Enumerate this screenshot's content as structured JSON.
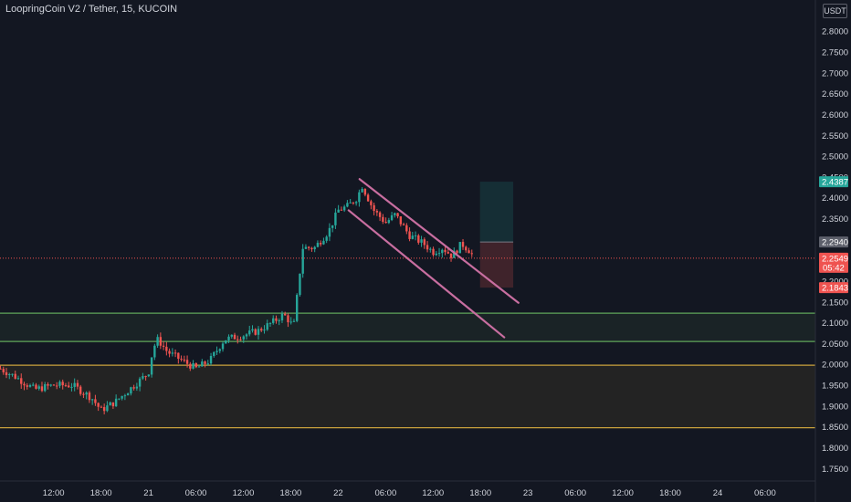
{
  "header": {
    "title": "LoopringCoin V2 / Tether, 15, KUCOIN",
    "currency_button": "USDT"
  },
  "colors": {
    "background": "#131722",
    "up": "#26a69a",
    "down": "#ef5350",
    "channel": "#c86ea0",
    "support_zone": "#5fa55a",
    "demand_zone": "#c9a23c",
    "price_line": "#ef5350"
  },
  "chart_data": {
    "type": "candlestick",
    "ylim": [
      1.72,
      2.875
    ],
    "xlim": [
      -1.13,
      16.06
    ],
    "y_ticks": [
      "2.8000",
      "2.7500",
      "2.7000",
      "2.6500",
      "2.6000",
      "2.5500",
      "2.5000",
      "2.4500",
      "2.4000",
      "2.3500",
      "2.3000",
      "2.2500",
      "2.2000",
      "2.1500",
      "2.1000",
      "2.0500",
      "2.0000",
      "1.9500",
      "1.9000",
      "1.8500",
      "1.8000",
      "1.7500"
    ],
    "y_tick_values": [
      2.8,
      2.75,
      2.7,
      2.65,
      2.6,
      2.55,
      2.5,
      2.45,
      2.4,
      2.35,
      2.3,
      2.25,
      2.2,
      2.15,
      2.1,
      2.05,
      2.0,
      1.95,
      1.9,
      1.85,
      1.8,
      1.75
    ],
    "x_ticks": [
      {
        "label": "12:00",
        "t": 0
      },
      {
        "label": "18:00",
        "t": 1
      },
      {
        "label": "21",
        "t": 2
      },
      {
        "label": "06:00",
        "t": 3
      },
      {
        "label": "12:00",
        "t": 4
      },
      {
        "label": "18:00",
        "t": 5
      },
      {
        "label": "22",
        "t": 6
      },
      {
        "label": "06:00",
        "t": 7
      },
      {
        "label": "12:00",
        "t": 8
      },
      {
        "label": "18:00",
        "t": 9
      },
      {
        "label": "23",
        "t": 10
      },
      {
        "label": "06:00",
        "t": 11
      },
      {
        "label": "12:00",
        "t": 12
      },
      {
        "label": "18:00",
        "t": 13
      },
      {
        "label": "24",
        "t": 14
      },
      {
        "label": "06:00",
        "t": 15
      }
    ],
    "price_path": [
      [
        -1.13,
        1.99
      ],
      [
        -0.8,
        1.97
      ],
      [
        -0.4,
        1.94
      ],
      [
        0.0,
        1.95
      ],
      [
        0.4,
        1.95
      ],
      [
        0.8,
        1.92
      ],
      [
        1.0,
        1.89
      ],
      [
        1.3,
        1.91
      ],
      [
        1.6,
        1.94
      ],
      [
        2.0,
        1.98
      ],
      [
        2.1,
        2.04
      ],
      [
        2.2,
        2.06
      ],
      [
        2.4,
        2.03
      ],
      [
        2.7,
        2.01
      ],
      [
        3.0,
        1.99
      ],
      [
        3.3,
        2.01
      ],
      [
        3.6,
        2.06
      ],
      [
        4.0,
        2.07
      ],
      [
        4.3,
        2.08
      ],
      [
        4.6,
        2.1
      ],
      [
        4.85,
        2.12
      ],
      [
        5.0,
        2.1
      ],
      [
        5.05,
        2.08
      ],
      [
        5.15,
        2.18
      ],
      [
        5.25,
        2.28
      ],
      [
        5.5,
        2.28
      ],
      [
        5.8,
        2.32
      ],
      [
        6.0,
        2.37
      ],
      [
        6.2,
        2.38
      ],
      [
        6.4,
        2.4
      ],
      [
        6.5,
        2.43
      ],
      [
        6.75,
        2.37
      ],
      [
        7.0,
        2.34
      ],
      [
        7.2,
        2.36
      ],
      [
        7.5,
        2.31
      ],
      [
        7.8,
        2.29
      ],
      [
        8.0,
        2.27
      ],
      [
        8.2,
        2.28
      ],
      [
        8.4,
        2.26
      ],
      [
        8.6,
        2.29
      ],
      [
        8.8,
        2.27
      ],
      [
        8.85,
        2.2549
      ]
    ],
    "channel_lines": [
      {
        "t1": 6.45,
        "p1": 2.445,
        "t2": 9.8,
        "p2": 2.148
      },
      {
        "t1": 6.22,
        "p1": 2.37,
        "t2": 9.5,
        "p2": 2.065
      }
    ],
    "zones": [
      {
        "top": 2.123,
        "bottom": 2.055,
        "name": "support"
      },
      {
        "top": 1.998,
        "bottom": 1.848,
        "name": "demand"
      }
    ],
    "position": {
      "t_start": 8.99,
      "t_end": 9.69,
      "entry": 2.294,
      "target": 2.4387,
      "stop": 2.1843
    },
    "last_price": 2.2549,
    "price_tags": [
      {
        "label": "2.4387",
        "value": 2.4387,
        "color": "#26a69a"
      },
      {
        "label": "2.2940",
        "value": 2.294,
        "color": "#5d606b"
      },
      {
        "label": "2.2549",
        "sub": "05:42",
        "value": 2.2549,
        "color": "#ef5350"
      },
      {
        "label": "2.1843",
        "value": 2.1843,
        "color": "#ef5350"
      }
    ]
  }
}
